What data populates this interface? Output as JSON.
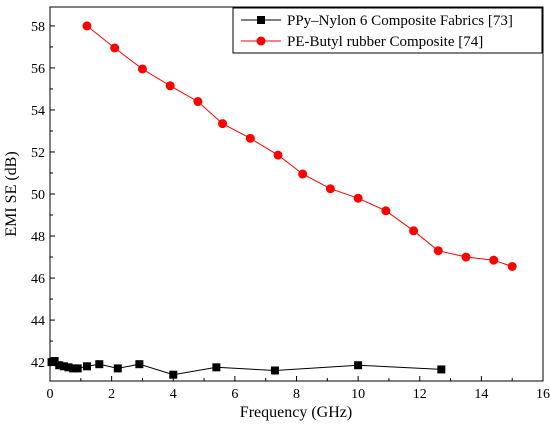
{
  "chart_data": {
    "type": "line",
    "xlabel": "Frequency (GHz)",
    "ylabel": "EMI SE (dB)",
    "xlim": [
      0,
      16
    ],
    "ylim": [
      41.1,
      58.9
    ],
    "xticks": [
      0,
      2,
      4,
      6,
      8,
      10,
      12,
      14,
      16
    ],
    "yticks": [
      42,
      44,
      46,
      48,
      50,
      52,
      54,
      56,
      58
    ],
    "grid": false,
    "legend_position": "top-right",
    "series": [
      {
        "name": "PPy–Nylon 6 Composite Fabrics [73]",
        "color": "#000000",
        "marker": "square",
        "x": [
          0.05,
          0.15,
          0.3,
          0.45,
          0.6,
          0.75,
          0.9,
          1.2,
          1.6,
          2.2,
          2.9,
          4.0,
          5.4,
          7.3,
          10.0,
          12.7
        ],
        "y": [
          42.0,
          42.05,
          41.85,
          41.8,
          41.75,
          41.7,
          41.7,
          41.8,
          41.9,
          41.7,
          41.9,
          41.4,
          41.75,
          41.6,
          41.85,
          41.65
        ]
      },
      {
        "name": "PE-Butyl rubber Composite [74]",
        "color": "#ff0000",
        "marker": "circle",
        "x": [
          1.2,
          2.1,
          3.0,
          3.9,
          4.8,
          5.6,
          6.5,
          7.4,
          8.2,
          9.1,
          10.0,
          10.9,
          11.8,
          12.6,
          13.5,
          14.4,
          15.0
        ],
        "y": [
          58.0,
          56.95,
          55.95,
          55.15,
          54.4,
          53.35,
          52.65,
          51.85,
          50.95,
          50.25,
          49.8,
          49.2,
          48.25,
          47.3,
          47.0,
          46.85,
          46.55
        ]
      }
    ]
  }
}
